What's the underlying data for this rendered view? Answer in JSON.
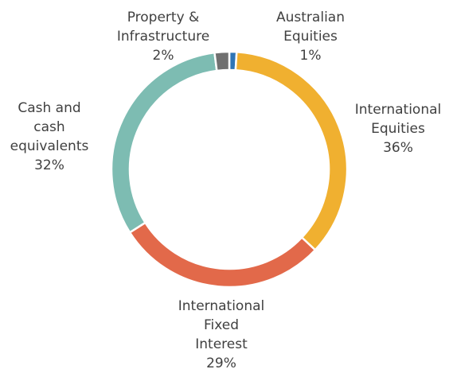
{
  "chart_data": {
    "type": "donut",
    "categories": [
      "Australian\nEquities",
      "International\nEquities",
      "International\nFixed\nInterest",
      "Cash and\ncash\nequivalents",
      "Property &\nInfrastructure"
    ],
    "values": [
      1,
      36,
      29,
      32,
      2
    ],
    "value_labels": [
      "1%",
      "36%",
      "29%",
      "32%",
      "2%"
    ],
    "colors": [
      "#2e75b6",
      "#f0b030",
      "#e2694a",
      "#7dbcb2",
      "#707070"
    ]
  }
}
